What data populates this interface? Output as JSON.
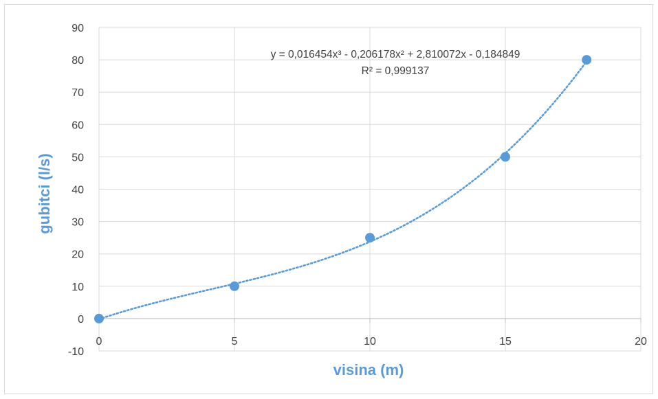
{
  "chart_data": {
    "type": "scatter",
    "title": "",
    "xlabel": "visina (m)",
    "ylabel": "gubitci (l/s)",
    "xlim": [
      0,
      20
    ],
    "ylim": [
      -10,
      90
    ],
    "x_ticks": [
      "0",
      "5",
      "10",
      "15",
      "20"
    ],
    "y_ticks": [
      "-10",
      "0",
      "10",
      "20",
      "30",
      "40",
      "50",
      "60",
      "70",
      "80",
      "90"
    ],
    "grid": true,
    "legend": "none",
    "series": [
      {
        "x": [
          0,
          5,
          10,
          15,
          18
        ],
        "y": [
          0,
          10,
          25,
          50,
          80
        ],
        "color": "#5b9bd5"
      }
    ],
    "trendline": {
      "type": "polynomial",
      "order": 3,
      "coefficients": [
        0.016454,
        -0.206178,
        2.810072,
        -0.184849
      ],
      "style": "dotted",
      "color": "#5b9bd5",
      "equation_text": "y = 0,016454x³ - 0,206178x² + 2,810072x - 0,184849",
      "r2_text": "R² = 0,999137"
    },
    "colors": {
      "axis_title": "#5b9bd5",
      "grid": "#d9d9d9",
      "tick_text": "#404040"
    }
  }
}
